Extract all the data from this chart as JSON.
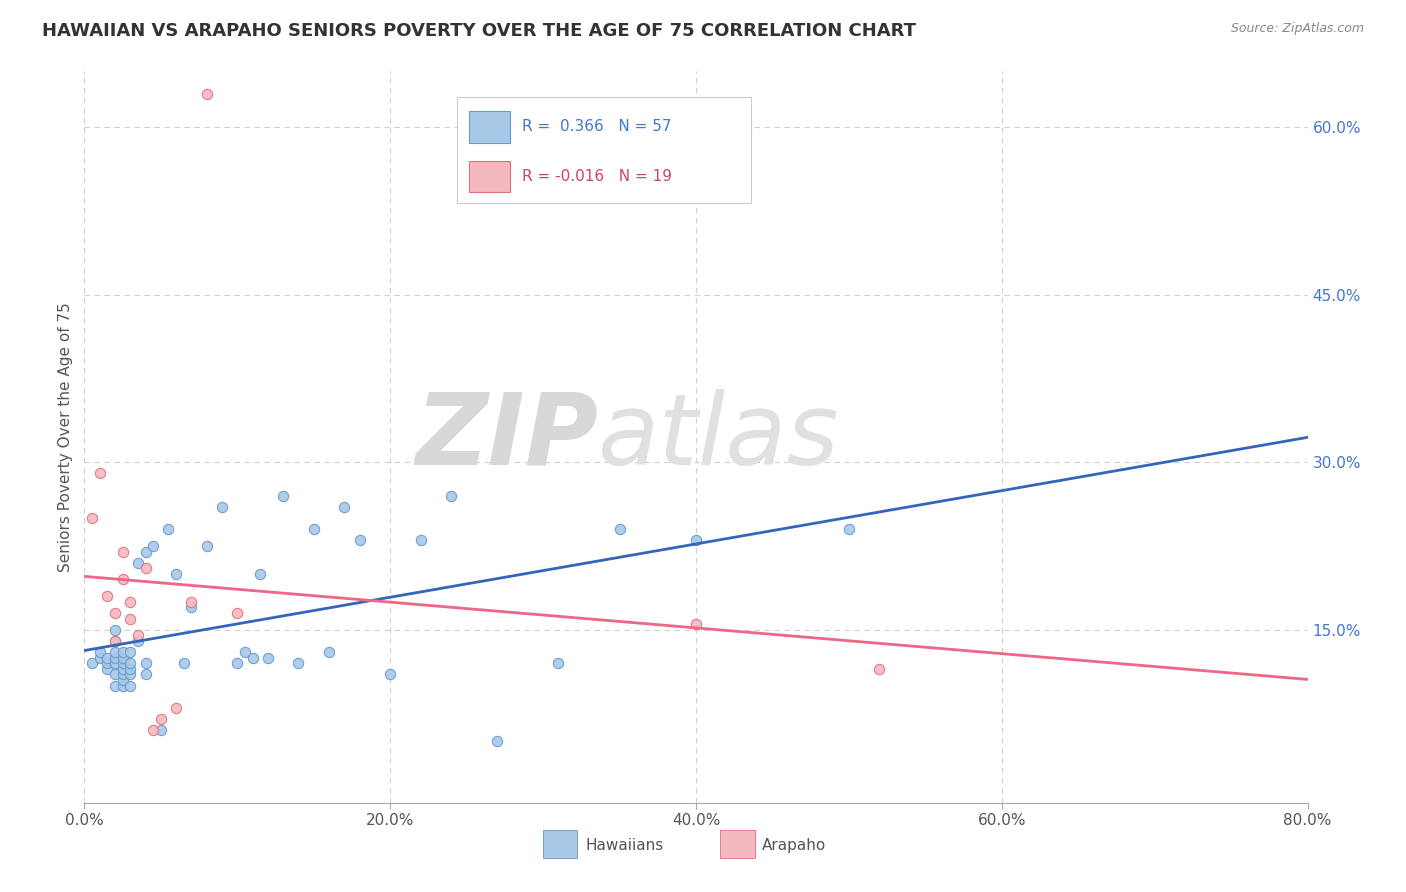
{
  "title": "HAWAIIAN VS ARAPAHO SENIORS POVERTY OVER THE AGE OF 75 CORRELATION CHART",
  "source": "Source: ZipAtlas.com",
  "ylabel": "Seniors Poverty Over the Age of 75",
  "xlim": [
    0.0,
    0.8
  ],
  "ylim": [
    -0.005,
    0.65
  ],
  "xticks": [
    0.0,
    0.2,
    0.4,
    0.6,
    0.8
  ],
  "xticklabels": [
    "0.0%",
    "20.0%",
    "40.0%",
    "60.0%",
    "80.0%"
  ],
  "yticks_right": [
    0.15,
    0.3,
    0.45,
    0.6
  ],
  "ytick_right_labels": [
    "15.0%",
    "30.0%",
    "45.0%",
    "60.0%"
  ],
  "hawaiian_color": "#a8c8e8",
  "hawaiian_edge_color": "#6699cc",
  "arapaho_color": "#f4b8c0",
  "arapaho_edge_color": "#e07080",
  "hawaiian_R": 0.366,
  "hawaiian_N": 57,
  "arapaho_R": -0.016,
  "arapaho_N": 19,
  "watermark_zip": "ZIP",
  "watermark_atlas": "atlas",
  "hawaiian_x": [
    0.005,
    0.01,
    0.01,
    0.015,
    0.015,
    0.015,
    0.02,
    0.02,
    0.02,
    0.02,
    0.02,
    0.02,
    0.02,
    0.025,
    0.025,
    0.025,
    0.025,
    0.025,
    0.025,
    0.025,
    0.03,
    0.03,
    0.03,
    0.03,
    0.03,
    0.035,
    0.035,
    0.04,
    0.04,
    0.04,
    0.045,
    0.05,
    0.055,
    0.06,
    0.065,
    0.07,
    0.08,
    0.09,
    0.1,
    0.105,
    0.11,
    0.115,
    0.12,
    0.13,
    0.14,
    0.15,
    0.16,
    0.17,
    0.18,
    0.2,
    0.22,
    0.24,
    0.27,
    0.31,
    0.35,
    0.4,
    0.5
  ],
  "hawaiian_y": [
    0.12,
    0.125,
    0.13,
    0.115,
    0.12,
    0.125,
    0.1,
    0.11,
    0.12,
    0.125,
    0.13,
    0.14,
    0.15,
    0.1,
    0.105,
    0.11,
    0.115,
    0.12,
    0.125,
    0.13,
    0.1,
    0.11,
    0.115,
    0.12,
    0.13,
    0.14,
    0.21,
    0.11,
    0.12,
    0.22,
    0.225,
    0.06,
    0.24,
    0.2,
    0.12,
    0.17,
    0.225,
    0.26,
    0.12,
    0.13,
    0.125,
    0.2,
    0.125,
    0.27,
    0.12,
    0.24,
    0.13,
    0.26,
    0.23,
    0.11,
    0.23,
    0.27,
    0.05,
    0.12,
    0.24,
    0.23,
    0.24
  ],
  "arapaho_x": [
    0.005,
    0.01,
    0.015,
    0.02,
    0.02,
    0.025,
    0.025,
    0.03,
    0.03,
    0.035,
    0.04,
    0.045,
    0.05,
    0.06,
    0.07,
    0.08,
    0.1,
    0.4,
    0.52
  ],
  "arapaho_y": [
    0.25,
    0.29,
    0.18,
    0.165,
    0.14,
    0.195,
    0.22,
    0.175,
    0.16,
    0.145,
    0.205,
    0.06,
    0.07,
    0.08,
    0.175,
    0.63,
    0.165,
    0.155,
    0.115
  ],
  "background_color": "#ffffff",
  "grid_color": "#d0d0d0",
  "title_color": "#333333",
  "source_color": "#888888",
  "regression_blue": "#3366bb",
  "regression_pink": "#ee6688"
}
